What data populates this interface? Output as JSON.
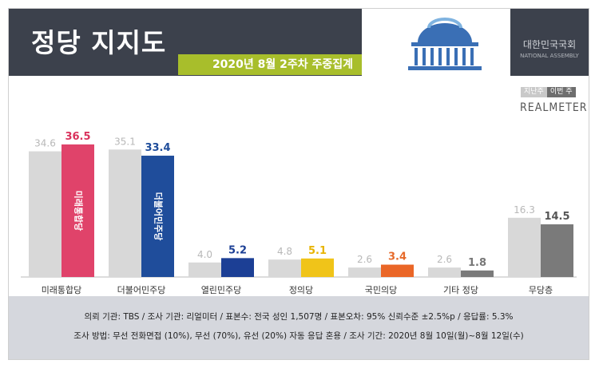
{
  "header": {
    "title": "정당 지지도",
    "subtitle": "2020년 8월 2주차 주중집계",
    "assembly_kr": "대한민국국회",
    "assembly_en": "NATIONAL ASSEMBLY"
  },
  "legend": {
    "prev": "지난주",
    "cur": "이번 주"
  },
  "brand": "REALMETER",
  "footer": {
    "line1": "의뢰 기관: TBS / 조사 기관: 리얼미터 / 표본수: 전국 성인 1,507명 / 표본오차: 95% 신뢰수준 ±2.5%p / 응답률: 5.3%",
    "line2": "조사 방법: 무선 전화면접 (10%), 무선 (70%), 유선 (20%) 자동 응답 혼용 / 조사 기간: 2020년 8월 10일(월)~8월 12일(수)"
  },
  "chart_data": {
    "type": "bar",
    "categories": [
      "미래통합당",
      "더불어민주당",
      "열린민주당",
      "정의당",
      "국민의당",
      "기타 정당",
      "무당층"
    ],
    "series": [
      {
        "name": "지난주",
        "values": [
          34.6,
          35.1,
          4.0,
          4.8,
          2.6,
          2.6,
          16.3
        ]
      },
      {
        "name": "이번 주",
        "values": [
          36.5,
          33.4,
          5.2,
          5.1,
          3.4,
          1.8,
          14.5
        ]
      }
    ],
    "prev_labels": [
      "34.6",
      "35.1",
      "4.0",
      "4.8",
      "2.6",
      "2.6",
      "16.3"
    ],
    "cur_labels": [
      "36.5",
      "33.4",
      "5.2",
      "5.1",
      "3.4",
      "1.8",
      "14.5"
    ],
    "bar_texts": [
      "미래통합당",
      "더불어민주당",
      "",
      "",
      "",
      "",
      ""
    ],
    "ylim": [
      0,
      40
    ],
    "colors": {
      "prev": "#d8d8d8",
      "cur": [
        "#e0436a",
        "#1f4d9b",
        "#1c3f95",
        "#f0c419",
        "#ea6627",
        "#7a7a7a",
        "#7a7a7a"
      ],
      "cur_label": [
        "#d9325c",
        "#1f4d9b",
        "#1c3f95",
        "#e8b400",
        "#e66a2a",
        "#777777",
        "#555555"
      ],
      "prev_label": "#b8b8b8",
      "category_label": "#333333"
    }
  }
}
